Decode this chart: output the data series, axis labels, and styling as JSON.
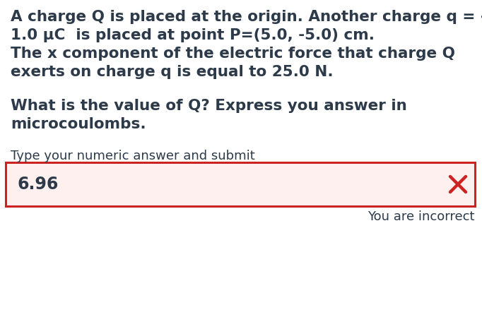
{
  "bg_color": "#ffffff",
  "text_color": "#2d3a4a",
  "line1": "A charge Q is placed at the origin. Another charge q = -",
  "line2": "1.0 μC  is placed at point P=(5.0, -5.0) cm.",
  "line3": "The x component of the electric force that charge Q",
  "line4": "exerts on charge q is equal to 25.0 N.",
  "line5": "What is the value of Q? Express you answer in",
  "line6": "microcoulombs.",
  "prompt": "Type your numeric answer and submit",
  "answer": "6.96",
  "feedback": "You are incorrect",
  "box_bg": "#fff0f0",
  "box_border": "#cc2222",
  "cross_color": "#cc2222",
  "main_fontsize": 15.5,
  "prompt_fontsize": 13,
  "answer_fontsize": 17,
  "feedback_fontsize": 13
}
